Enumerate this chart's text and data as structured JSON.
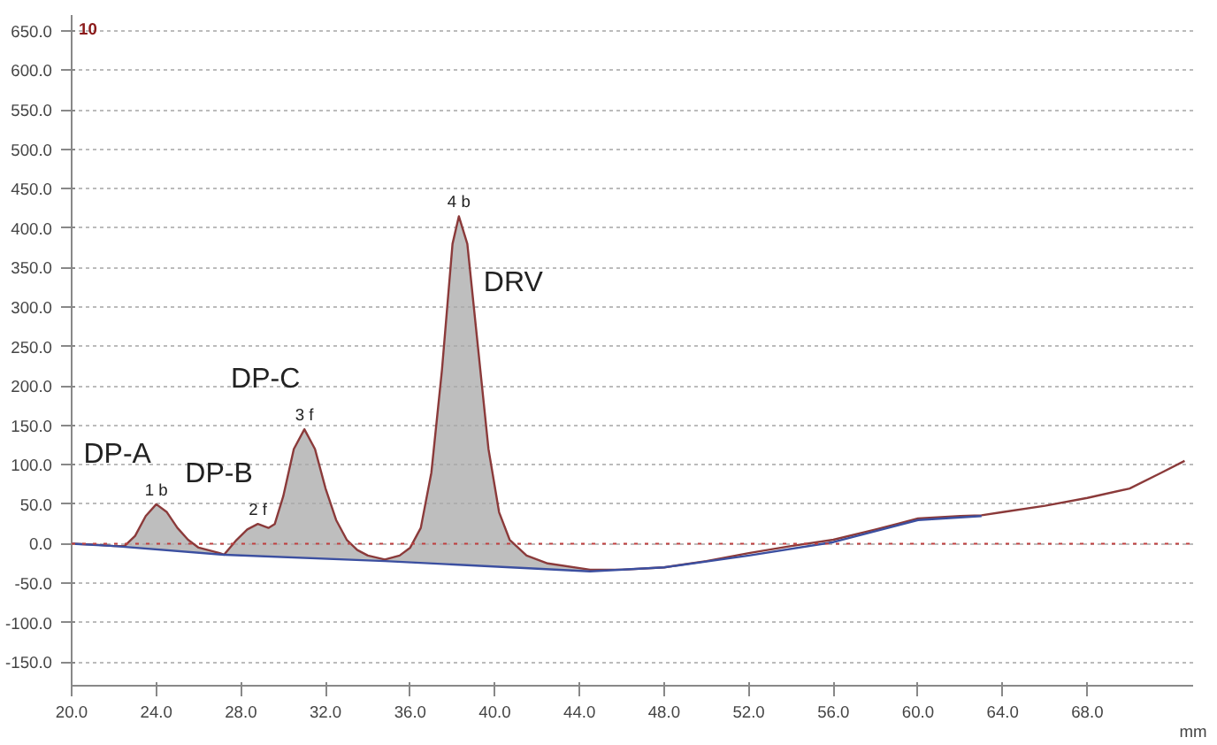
{
  "chart_data": {
    "type": "line",
    "xlabel": "mm",
    "annotations": [
      "10",
      {
        "text": "DP-A",
        "x": 24,
        "y": 50
      },
      {
        "text": "DP-B",
        "x": 28.8,
        "y": 25
      },
      {
        "text": "DP-C",
        "x": 31,
        "y": 145
      },
      {
        "text": "DRV",
        "x": 38.3,
        "y": 415
      },
      {
        "text": "1 b",
        "x": 24,
        "y": 50
      },
      {
        "text": "2 f",
        "x": 28.8,
        "y": 25
      },
      {
        "text": "3 f",
        "x": 31,
        "y": 145
      },
      {
        "text": "4 b",
        "x": 38.3,
        "y": 415
      }
    ],
    "series": [
      {
        "color": "#8b3a3a",
        "x": [
          20,
          21,
          22,
          22.5,
          23,
          23.5,
          24,
          24.5,
          25,
          25.5,
          26,
          27,
          27.2,
          27.8,
          28.3,
          28.8,
          29.3,
          29.6,
          30,
          30.5,
          31,
          31.5,
          32,
          32.5,
          33,
          33.5,
          34,
          34.8,
          35.5,
          36,
          36.5,
          37,
          37.5,
          38,
          38.3,
          38.7,
          39.2,
          39.7,
          40.2,
          40.7,
          41.5,
          42.5,
          44.5,
          46,
          48,
          50,
          52,
          54,
          56,
          58,
          60,
          62,
          63,
          64,
          66,
          68,
          70,
          71.5,
          72.6
        ],
        "values": [
          0,
          -1,
          -3,
          -3,
          10,
          35,
          50,
          40,
          20,
          5,
          -5,
          -12,
          -14,
          5,
          18,
          25,
          20,
          25,
          60,
          120,
          145,
          120,
          70,
          30,
          5,
          -8,
          -15,
          -20,
          -15,
          -5,
          20,
          90,
          220,
          380,
          415,
          380,
          250,
          120,
          40,
          5,
          -15,
          -25,
          -33,
          -33,
          -30,
          -22,
          -12,
          -3,
          5,
          18,
          32,
          35,
          36,
          40,
          48,
          58,
          70,
          90,
          105
        ],
        "upper": [
          null,
          null,
          -3,
          -3,
          10,
          35,
          50,
          40,
          20,
          5,
          -5,
          -12,
          -14,
          5,
          18,
          25,
          20,
          25,
          60,
          120,
          145,
          120,
          70,
          30,
          5,
          -8,
          -15,
          -20,
          -15,
          -5,
          20,
          90,
          220,
          380,
          415,
          380,
          250,
          120,
          40,
          5,
          -15,
          -25,
          -33,
          null,
          null,
          null,
          null,
          null,
          null,
          null,
          null,
          null,
          null,
          null,
          null,
          null,
          null,
          null,
          null
        ],
        "lower": [
          null,
          null,
          -3,
          -4,
          -5,
          -6,
          -7,
          -8,
          -9,
          -10,
          -11,
          -13,
          -14,
          -15,
          -15,
          -16,
          -16,
          -17,
          -17,
          -17,
          -18,
          -18,
          -19,
          -20,
          -20,
          -21,
          -21,
          -22,
          -23,
          -24,
          -24,
          -25,
          -26,
          -26,
          -27,
          -27,
          -28,
          -29,
          -29,
          -30,
          -31,
          -32,
          -35,
          null,
          null,
          null,
          null,
          null,
          null,
          null,
          null,
          null,
          null,
          null,
          null,
          null,
          null,
          null,
          null
        ]
      },
      {
        "color": "#3b4fa0",
        "x": [
          20,
          22,
          27.2,
          34.8,
          44.5,
          48,
          52,
          56,
          60,
          63
        ],
        "values": [
          0,
          -3,
          -14,
          -22,
          -35,
          -30,
          -15,
          2,
          30,
          35
        ]
      }
    ],
    "xlim": [
      20,
      73
    ],
    "ylim": [
      -180,
      670
    ],
    "xticks": [
      {
        "value": 20,
        "label": "20.0"
      },
      {
        "value": 24,
        "label": "24.0"
      },
      {
        "value": 28,
        "label": "28.0"
      },
      {
        "value": 32,
        "label": "32.0"
      },
      {
        "value": 36,
        "label": "36.0"
      },
      {
        "value": 40,
        "label": "40.0"
      },
      {
        "value": 44,
        "label": "44.0"
      },
      {
        "value": 48,
        "label": "48.0"
      },
      {
        "value": 52,
        "label": "52.0"
      },
      {
        "value": 56,
        "label": "56.0"
      },
      {
        "value": 60,
        "label": "60.0"
      },
      {
        "value": 64,
        "label": "64.0"
      },
      {
        "value": 68,
        "label": "68.0"
      }
    ],
    "yticks": [
      {
        "value": -150,
        "label": "-150.0"
      },
      {
        "value": -100,
        "label": "-100.0"
      },
      {
        "value": -50,
        "label": "-50.0"
      },
      {
        "value": 0,
        "label": "0.0"
      },
      {
        "value": 50,
        "label": "50.0"
      },
      {
        "value": 100,
        "label": "100.0"
      },
      {
        "value": 150,
        "label": "150.0"
      },
      {
        "value": 200,
        "label": "200.0"
      },
      {
        "value": 250,
        "label": "250.0"
      },
      {
        "value": 300,
        "label": "300.0"
      },
      {
        "value": 350,
        "label": "350.0"
      },
      {
        "value": 400,
        "label": "400.0"
      },
      {
        "value": 450,
        "label": "450.0"
      },
      {
        "value": 500,
        "label": "500.0"
      },
      {
        "value": 550,
        "label": "550.0"
      },
      {
        "value": 600,
        "label": "600.0"
      },
      {
        "value": 650,
        "label": "650.0"
      }
    ],
    "grid": "y",
    "ref_lines": [
      {
        "axis": "y",
        "value": 0,
        "color": "#c04040",
        "line_style": "dotted"
      }
    ]
  }
}
